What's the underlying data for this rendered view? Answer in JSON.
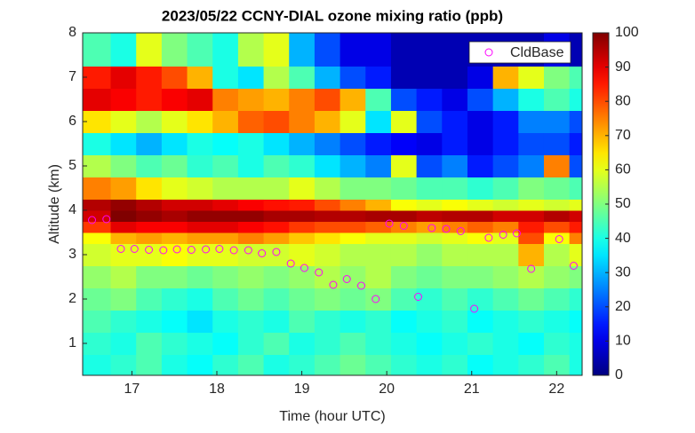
{
  "chart_data": {
    "type": "heatmap",
    "title": "2023/05/22 CCNY-DIAL ozone mixing ratio (ppb)",
    "xlabel": "Time (hour UTC)",
    "ylabel": "Altitude (km)",
    "xlim": [
      16.42,
      22.3
    ],
    "ylim": [
      0.28,
      8
    ],
    "xticks": [
      17,
      18,
      19,
      20,
      21,
      22
    ],
    "yticks": [
      1,
      2,
      3,
      4,
      5,
      6,
      7,
      8
    ],
    "colormap": "jet",
    "clim": [
      0,
      100
    ],
    "cticks": [
      0,
      10,
      20,
      30,
      40,
      50,
      60,
      70,
      80,
      90,
      100
    ],
    "x_edges": [
      16.42,
      16.75,
      17.05,
      17.35,
      17.65,
      17.95,
      18.25,
      18.55,
      18.85,
      19.15,
      19.45,
      19.75,
      20.05,
      20.35,
      20.65,
      20.95,
      21.25,
      21.55,
      21.85,
      22.15,
      22.3
    ],
    "y_edges": [
      0.28,
      0.75,
      1.25,
      1.75,
      2.25,
      2.75,
      3.25,
      3.5,
      3.75,
      4.0,
      4.25,
      4.75,
      5.25,
      5.75,
      6.25,
      6.75,
      7.25,
      8
    ],
    "z": [
      [
        40,
        42,
        45,
        40,
        38,
        42,
        45,
        40,
        42,
        45,
        48,
        45,
        42,
        40,
        42,
        38,
        40,
        42,
        45,
        40
      ],
      [
        42,
        40,
        45,
        42,
        40,
        38,
        42,
        45,
        40,
        42,
        45,
        42,
        40,
        38,
        40,
        42,
        40,
        38,
        42,
        40
      ],
      [
        45,
        42,
        40,
        38,
        35,
        40,
        42,
        40,
        45,
        42,
        40,
        42,
        38,
        40,
        42,
        38,
        40,
        42,
        40,
        38
      ],
      [
        48,
        50,
        45,
        42,
        40,
        45,
        48,
        45,
        48,
        50,
        48,
        50,
        45,
        42,
        45,
        42,
        45,
        48,
        45,
        42
      ],
      [
        52,
        55,
        50,
        50,
        48,
        50,
        52,
        50,
        52,
        55,
        52,
        55,
        50,
        48,
        50,
        50,
        52,
        55,
        52,
        50
      ],
      [
        58,
        60,
        60,
        62,
        60,
        60,
        58,
        58,
        60,
        58,
        55,
        55,
        55,
        52,
        55,
        55,
        55,
        70,
        55,
        60
      ],
      [
        62,
        70,
        72,
        70,
        72,
        72,
        75,
        72,
        68,
        65,
        62,
        60,
        60,
        58,
        60,
        62,
        60,
        80,
        62,
        75
      ],
      [
        82,
        90,
        88,
        88,
        90,
        90,
        88,
        86,
        82,
        80,
        80,
        78,
        75,
        72,
        75,
        78,
        75,
        85,
        80,
        85
      ],
      [
        92,
        100,
        98,
        96,
        98,
        98,
        98,
        96,
        96,
        95,
        95,
        96,
        96,
        94,
        95,
        95,
        92,
        92,
        95,
        92
      ],
      [
        95,
        98,
        95,
        92,
        92,
        90,
        88,
        86,
        85,
        80,
        75,
        70,
        62,
        60,
        62,
        60,
        58,
        60,
        58,
        60
      ],
      [
        75,
        72,
        65,
        60,
        58,
        55,
        55,
        55,
        60,
        55,
        50,
        50,
        48,
        45,
        45,
        42,
        45,
        50,
        48,
        45
      ],
      [
        55,
        50,
        45,
        48,
        42,
        45,
        40,
        45,
        42,
        35,
        30,
        25,
        60,
        20,
        25,
        15,
        20,
        25,
        75,
        20
      ],
      [
        40,
        35,
        30,
        35,
        40,
        38,
        40,
        35,
        30,
        25,
        20,
        15,
        12,
        10,
        15,
        10,
        15,
        20,
        20,
        15
      ],
      [
        65,
        60,
        55,
        60,
        65,
        70,
        78,
        80,
        75,
        70,
        60,
        35,
        60,
        20,
        15,
        10,
        15,
        25,
        25,
        20
      ],
      [
        90,
        88,
        85,
        88,
        90,
        75,
        72,
        70,
        75,
        80,
        70,
        45,
        20,
        15,
        10,
        20,
        30,
        40,
        45,
        40
      ],
      [
        85,
        90,
        85,
        80,
        70,
        40,
        35,
        55,
        45,
        30,
        20,
        15,
        5,
        5,
        5,
        10,
        70,
        60,
        50,
        45
      ],
      [
        45,
        40,
        60,
        50,
        45,
        40,
        55,
        60,
        30,
        20,
        10,
        10,
        5,
        5,
        5,
        5,
        5,
        5,
        10,
        5
      ]
    ],
    "overlay": {
      "type": "scatter",
      "name": "CldBase",
      "color": "#ff00ff",
      "x": [
        16.53,
        16.7,
        16.87,
        17.03,
        17.2,
        17.37,
        17.53,
        17.7,
        17.87,
        18.03,
        18.2,
        18.37,
        18.53,
        18.7,
        18.87,
        19.03,
        19.2,
        19.37,
        19.53,
        19.7,
        19.87,
        20.03,
        20.2,
        20.37,
        20.53,
        20.7,
        20.87,
        21.03,
        21.2,
        21.37,
        21.53,
        21.7,
        22.03,
        22.2
      ],
      "y": [
        3.78,
        3.8,
        3.13,
        3.13,
        3.11,
        3.1,
        3.12,
        3.11,
        3.12,
        3.13,
        3.1,
        3.1,
        3.03,
        3.06,
        2.8,
        2.7,
        2.6,
        2.32,
        2.45,
        2.3,
        2.0,
        3.7,
        3.65,
        2.05,
        3.6,
        3.58,
        3.53,
        1.78,
        3.38,
        3.45,
        3.48,
        2.68,
        3.35,
        2.75
      ]
    },
    "legend": "upper right"
  }
}
